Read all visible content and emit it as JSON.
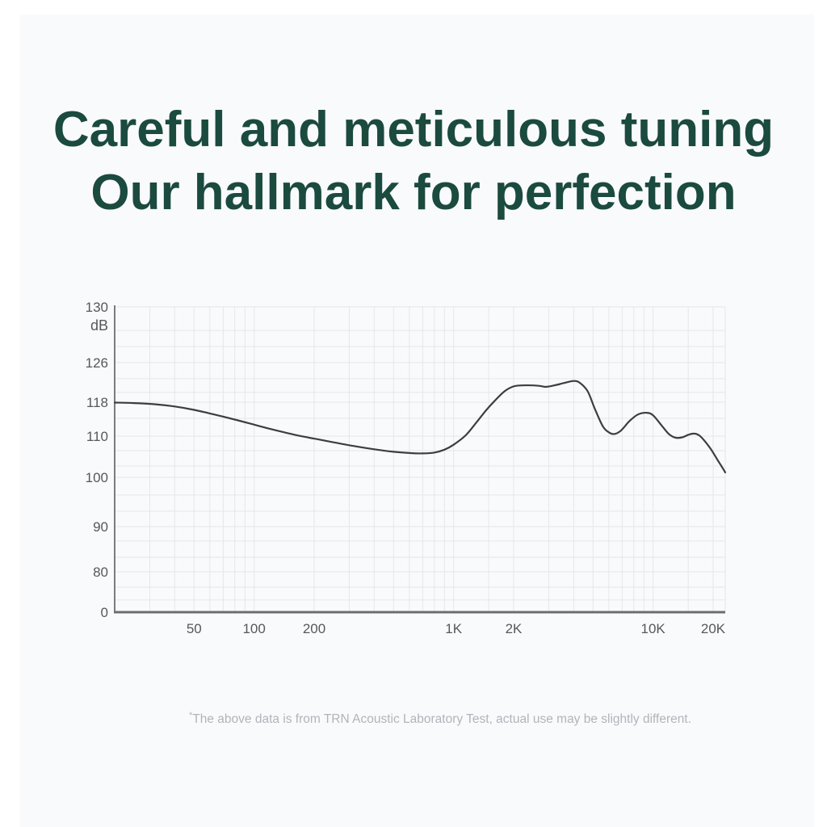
{
  "page": {
    "title_line1": "Careful and meticulous tuning",
    "title_line2": "Our hallmark for perfection",
    "title_color": "#1b4a3f",
    "panel_background": "#f9fafc",
    "outer_background": "#ffffff"
  },
  "footnote": {
    "asterisk": "*",
    "text": "The above data is from TRN Acoustic Laboratory Test, actual use may be slightly different."
  },
  "chart_data": {
    "type": "line",
    "title": "",
    "xlabel": "",
    "ylabel": "dB",
    "x_scale": "log",
    "x_min_hz": 20,
    "x_max_hz": 23000,
    "grid": "on",
    "legend": "none",
    "colors": {
      "curve": "#3b3e42",
      "grid_line": "#e6e7ea",
      "axis_left": "#797c81",
      "axis_bottom": "#6a6d72",
      "tick_label": "#55585c"
    },
    "x_ticks": [
      {
        "label": "50",
        "hz": 50
      },
      {
        "label": "100",
        "hz": 100
      },
      {
        "label": "200",
        "hz": 200
      },
      {
        "label": "1K",
        "hz": 1000
      },
      {
        "label": "2K",
        "hz": 2000
      },
      {
        "label": "10K",
        "hz": 10000
      },
      {
        "label": "20K",
        "hz": 20000
      }
    ],
    "y_ticks": [
      {
        "label": "130",
        "value": 130,
        "pos": 0.0
      },
      {
        "label": "126",
        "value": 126,
        "pos": 0.1825
      },
      {
        "label": "118",
        "value": 118,
        "pos": 0.3122
      },
      {
        "label": "110",
        "value": 110,
        "pos": 0.4233
      },
      {
        "label": "100",
        "value": 100,
        "pos": 0.5582
      },
      {
        "label": "90",
        "value": 90,
        "pos": 0.7196
      },
      {
        "label": "80",
        "value": 80,
        "pos": 0.8677
      },
      {
        "label": "0",
        "value": 0,
        "pos": 1.0
      }
    ],
    "minor_y_gridline_pos": [
      0.077,
      0.13,
      0.235,
      0.28,
      0.365,
      0.471,
      0.521,
      0.616,
      0.669,
      0.767,
      0.82,
      0.918,
      0.96
    ],
    "minor_x_gridlines_hz": [
      30,
      40,
      50,
      60,
      70,
      80,
      90,
      100,
      200,
      300,
      400,
      500,
      600,
      700,
      800,
      900,
      1000,
      1500,
      2000,
      3000,
      4000,
      5000,
      6000,
      7000,
      8000,
      9000,
      10000,
      15000,
      20000
    ],
    "series": [
      {
        "name": "frequency-response",
        "points_hz_db": [
          [
            20,
            117.9
          ],
          [
            25,
            117.8
          ],
          [
            32,
            117.5
          ],
          [
            40,
            117.0
          ],
          [
            50,
            116.2
          ],
          [
            63,
            115.1
          ],
          [
            80,
            113.9
          ],
          [
            100,
            112.7
          ],
          [
            125,
            111.5
          ],
          [
            160,
            110.3
          ],
          [
            200,
            109.4
          ],
          [
            250,
            108.5
          ],
          [
            315,
            107.6
          ],
          [
            400,
            106.8
          ],
          [
            500,
            106.2
          ],
          [
            600,
            105.9
          ],
          [
            700,
            105.8
          ],
          [
            800,
            106.0
          ],
          [
            900,
            106.7
          ],
          [
            1000,
            107.9
          ],
          [
            1150,
            110.2
          ],
          [
            1300,
            113.2
          ],
          [
            1450,
            116.0
          ],
          [
            1600,
            118.2
          ],
          [
            1800,
            120.2
          ],
          [
            2000,
            121.2
          ],
          [
            2200,
            121.4
          ],
          [
            2500,
            121.4
          ],
          [
            2700,
            121.3
          ],
          [
            2900,
            121.1
          ],
          [
            3200,
            121.4
          ],
          [
            3600,
            121.9
          ],
          [
            4000,
            122.3
          ],
          [
            4300,
            121.9
          ],
          [
            4700,
            120.2
          ],
          [
            5100,
            116.5
          ],
          [
            5600,
            112.3
          ],
          [
            6000,
            110.9
          ],
          [
            6400,
            110.5
          ],
          [
            6900,
            111.3
          ],
          [
            7600,
            113.5
          ],
          [
            8400,
            115.1
          ],
          [
            9300,
            115.5
          ],
          [
            10000,
            114.9
          ],
          [
            11000,
            112.6
          ],
          [
            12000,
            110.5
          ],
          [
            13000,
            109.6
          ],
          [
            14000,
            109.7
          ],
          [
            15000,
            110.3
          ],
          [
            16000,
            110.6
          ],
          [
            17000,
            110.2
          ],
          [
            18000,
            109.0
          ],
          [
            19500,
            106.8
          ],
          [
            21000,
            104.3
          ],
          [
            23000,
            101.2
          ]
        ]
      }
    ]
  }
}
